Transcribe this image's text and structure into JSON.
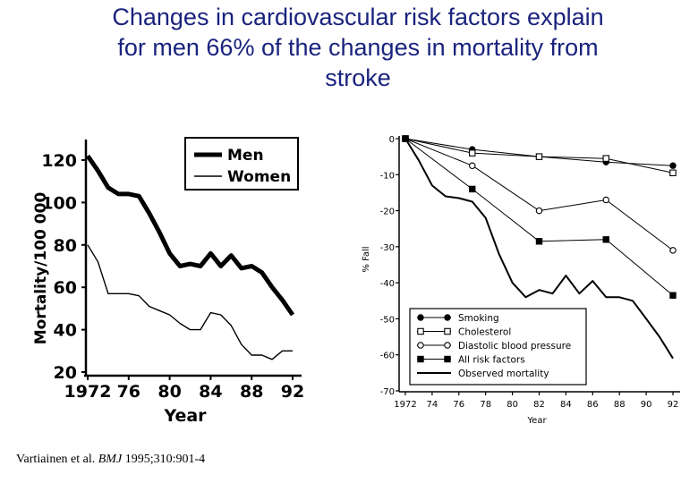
{
  "slide": {
    "title": "Changes in cardiovascular risk factors explain\nfor men  66% of  the changes in mortality from\nstroke"
  },
  "citation": {
    "authors": "Vartiainen et al.",
    "journal": "BMJ",
    "details": "1995;310:901-4"
  },
  "colors": {
    "title": "#1a237e",
    "ink": "#000000"
  },
  "chart_data": [
    {
      "type": "line",
      "xlabel": "Year",
      "ylabel": "Mortality/100 000",
      "xlim": [
        1972,
        1992
      ],
      "ylim": [
        20,
        125
      ],
      "xticks": [
        "1972",
        "76",
        "80",
        "84",
        "88",
        "92"
      ],
      "yticks": [
        "20",
        "40",
        "60",
        "80",
        "100",
        "120"
      ],
      "legend_position": "top-right",
      "series": [
        {
          "name": "Men",
          "x": [
            1972,
            1973,
            1974,
            1975,
            1976,
            1977,
            1978,
            1979,
            1980,
            1981,
            1982,
            1983,
            1984,
            1985,
            1986,
            1987,
            1988,
            1989,
            1990,
            1991,
            1992
          ],
          "values": [
            122,
            115,
            107,
            104,
            104,
            103,
            95,
            86,
            76,
            70,
            71,
            70,
            76,
            70,
            75,
            69,
            70,
            67,
            60,
            54,
            47
          ]
        },
        {
          "name": "Women",
          "x": [
            1972,
            1973,
            1974,
            1975,
            1976,
            1977,
            1978,
            1979,
            1980,
            1981,
            1982,
            1983,
            1984,
            1985,
            1986,
            1987,
            1988,
            1989,
            1990,
            1991,
            1992
          ],
          "values": [
            80,
            72,
            57,
            57,
            57,
            56,
            51,
            49,
            47,
            43,
            40,
            40,
            48,
            47,
            42,
            33,
            28,
            28,
            26,
            30,
            30
          ]
        }
      ]
    },
    {
      "type": "line",
      "xlabel": "Year",
      "ylabel": "% Fall",
      "xlim": [
        1972,
        1992
      ],
      "ylim": [
        -70,
        0
      ],
      "xticks": [
        "1972",
        "74",
        "76",
        "78",
        "80",
        "82",
        "84",
        "86",
        "88",
        "90",
        "92"
      ],
      "yticks": [
        "0",
        "-10",
        "-20",
        "-30",
        "-40",
        "-50",
        "-60",
        "-70"
      ],
      "legend_position": "bottom",
      "series": [
        {
          "name": "Smoking",
          "marker": "filled-circle",
          "x": [
            1972,
            1977,
            1982,
            1987,
            1992
          ],
          "values": [
            0,
            -3,
            -5,
            -6.5,
            -7.5
          ]
        },
        {
          "name": "Cholesterol",
          "marker": "open-square",
          "x": [
            1972,
            1977,
            1982,
            1987,
            1992
          ],
          "values": [
            0,
            -4,
            -5,
            -5.5,
            -9.5
          ]
        },
        {
          "name": "Diastolic blood pressure",
          "marker": "open-circle",
          "x": [
            1972,
            1977,
            1982,
            1987,
            1992
          ],
          "values": [
            0,
            -7.5,
            -20,
            -17,
            -31
          ]
        },
        {
          "name": "All risk factors",
          "marker": "filled-square",
          "x": [
            1972,
            1977,
            1982,
            1987,
            1992
          ],
          "values": [
            0,
            -14,
            -28.5,
            -28,
            -43.5
          ]
        },
        {
          "name": "Observed mortality",
          "marker": "none",
          "x": [
            1972,
            1973,
            1974,
            1975,
            1976,
            1977,
            1978,
            1979,
            1980,
            1981,
            1982,
            1983,
            1984,
            1985,
            1986,
            1987,
            1988,
            1989,
            1990,
            1991,
            1992
          ],
          "values": [
            0,
            -6,
            -13,
            -16,
            -16.5,
            -17.5,
            -22,
            -32,
            -40,
            -44,
            -42,
            -43,
            -38,
            -43,
            -39.5,
            -44,
            -44,
            -45,
            -50,
            -55,
            -61
          ]
        }
      ]
    }
  ]
}
